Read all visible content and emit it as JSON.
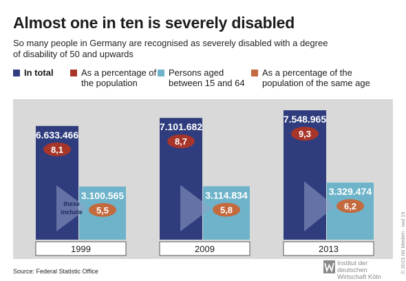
{
  "header": {
    "title": "Almost one in ten is severely disabled",
    "subtitle": "So many people in Germany are recognised as severely disabled with a degree of disability of 50 and upwards"
  },
  "legend": [
    {
      "label": "In total",
      "color": "#2f3d7e"
    },
    {
      "label": "As a percentage of the population",
      "color": "#a8352a"
    },
    {
      "label": "Persons aged between 15 and 64",
      "color": "#6eb3c9"
    },
    {
      "label": "As a percentage of the population of the same age",
      "color": "#c46a3f"
    }
  ],
  "annotation": "these include",
  "source": "Source: Federal Statistic Office",
  "copyright": "© 2015 IW Medien · iwd 19",
  "logo": {
    "line1": "Institut der deutschen",
    "line2": "Wirtschaft Köln"
  },
  "chart_data": {
    "type": "bar",
    "categories": [
      "1999",
      "2009",
      "2013"
    ],
    "series": [
      {
        "name": "In total",
        "values": [
          6633466,
          7101682,
          7548965
        ],
        "labels": [
          "6.633.466",
          "7.101.682",
          "7.548.965"
        ],
        "color": "#2f3d7e"
      },
      {
        "name": "As a percentage of the population",
        "values": [
          8.1,
          8.7,
          9.3
        ],
        "labels": [
          "8,1",
          "8,7",
          "9,3"
        ],
        "color": "#a8352a"
      },
      {
        "name": "Persons aged between 15 and 64",
        "values": [
          3100565,
          3114834,
          3329474
        ],
        "labels": [
          "3.100.565",
          "3.114.834",
          "3.329.474"
        ],
        "color": "#6eb3c9"
      },
      {
        "name": "As a percentage of the population of the same age",
        "values": [
          5.5,
          5.8,
          6.2
        ],
        "labels": [
          "5,5",
          "5,8",
          "6,2"
        ],
        "color": "#c46a3f"
      }
    ],
    "ylim": [
      0,
      8000000
    ],
    "grid": false,
    "legend_position": "top"
  }
}
